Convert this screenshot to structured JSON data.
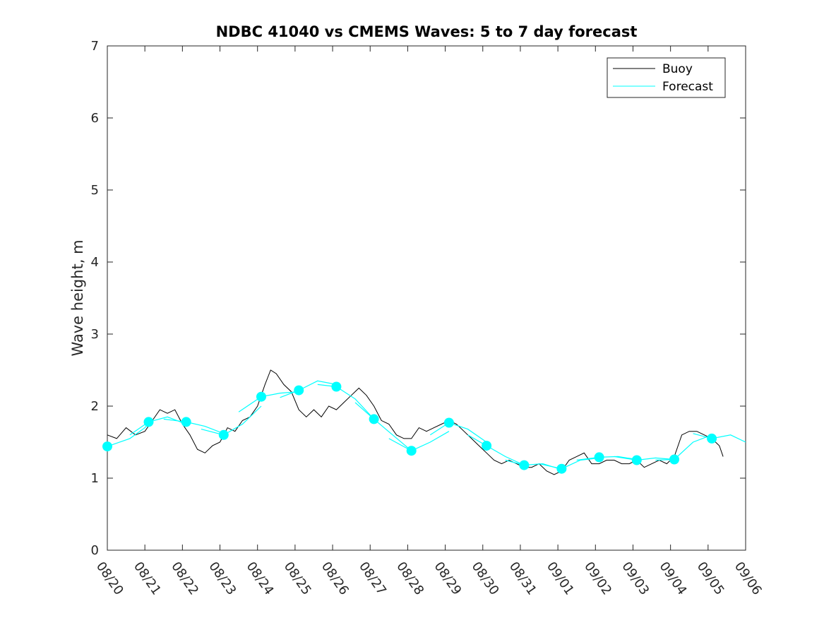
{
  "chart_data": {
    "type": "line",
    "title": "NDBC 41040 vs CMEMS Waves: 5 to 7 day forecast",
    "xlabel": "",
    "ylabel": "Wave height, m",
    "x_ticks": [
      "08/20",
      "08/21",
      "08/22",
      "08/23",
      "08/24",
      "08/25",
      "08/26",
      "08/27",
      "08/28",
      "08/29",
      "08/30",
      "08/31",
      "09/01",
      "09/02",
      "09/03",
      "09/04",
      "09/05",
      "09/06"
    ],
    "x_range": [
      "2021-08-20T00:00",
      "2021-09-06T00:00"
    ],
    "ylim": [
      0,
      7
    ],
    "y_ticks": [
      0,
      1,
      2,
      3,
      4,
      5,
      6,
      7
    ],
    "grid": false,
    "legend_position": "top-right",
    "colors": {
      "buoy": "#000000",
      "forecast": "#00ffff"
    },
    "series": [
      {
        "name": "Buoy",
        "points": [
          [
            0.0,
            1.6
          ],
          [
            0.25,
            1.55
          ],
          [
            0.5,
            1.7
          ],
          [
            0.75,
            1.6
          ],
          [
            1.0,
            1.65
          ],
          [
            1.2,
            1.8
          ],
          [
            1.4,
            1.95
          ],
          [
            1.6,
            1.9
          ],
          [
            1.8,
            1.95
          ],
          [
            2.0,
            1.75
          ],
          [
            2.2,
            1.6
          ],
          [
            2.4,
            1.4
          ],
          [
            2.6,
            1.35
          ],
          [
            2.8,
            1.45
          ],
          [
            3.0,
            1.5
          ],
          [
            3.2,
            1.7
          ],
          [
            3.4,
            1.65
          ],
          [
            3.6,
            1.8
          ],
          [
            3.8,
            1.85
          ],
          [
            4.0,
            2.0
          ],
          [
            4.2,
            2.3
          ],
          [
            4.35,
            2.5
          ],
          [
            4.5,
            2.45
          ],
          [
            4.7,
            2.3
          ],
          [
            4.9,
            2.2
          ],
          [
            5.1,
            1.95
          ],
          [
            5.3,
            1.85
          ],
          [
            5.5,
            1.95
          ],
          [
            5.7,
            1.85
          ],
          [
            5.9,
            2.0
          ],
          [
            6.1,
            1.95
          ],
          [
            6.3,
            2.05
          ],
          [
            6.5,
            2.15
          ],
          [
            6.7,
            2.25
          ],
          [
            6.9,
            2.15
          ],
          [
            7.1,
            2.0
          ],
          [
            7.3,
            1.8
          ],
          [
            7.5,
            1.75
          ],
          [
            7.7,
            1.6
          ],
          [
            7.9,
            1.55
          ],
          [
            8.1,
            1.55
          ],
          [
            8.3,
            1.7
          ],
          [
            8.5,
            1.65
          ],
          [
            8.7,
            1.7
          ],
          [
            8.9,
            1.75
          ],
          [
            9.1,
            1.8
          ],
          [
            9.3,
            1.75
          ],
          [
            9.5,
            1.65
          ],
          [
            9.7,
            1.55
          ],
          [
            9.9,
            1.45
          ],
          [
            10.1,
            1.35
          ],
          [
            10.3,
            1.25
          ],
          [
            10.5,
            1.2
          ],
          [
            10.7,
            1.25
          ],
          [
            10.9,
            1.2
          ],
          [
            11.1,
            1.15
          ],
          [
            11.3,
            1.15
          ],
          [
            11.5,
            1.2
          ],
          [
            11.7,
            1.1
          ],
          [
            11.9,
            1.05
          ],
          [
            12.1,
            1.1
          ],
          [
            12.3,
            1.25
          ],
          [
            12.5,
            1.3
          ],
          [
            12.7,
            1.35
          ],
          [
            12.9,
            1.2
          ],
          [
            13.1,
            1.2
          ],
          [
            13.3,
            1.25
          ],
          [
            13.5,
            1.25
          ],
          [
            13.7,
            1.2
          ],
          [
            13.9,
            1.2
          ],
          [
            14.1,
            1.25
          ],
          [
            14.3,
            1.15
          ],
          [
            14.5,
            1.2
          ],
          [
            14.7,
            1.25
          ],
          [
            14.9,
            1.2
          ],
          [
            15.1,
            1.3
          ],
          [
            15.3,
            1.6
          ],
          [
            15.5,
            1.65
          ],
          [
            15.7,
            1.65
          ],
          [
            15.9,
            1.6
          ],
          [
            16.1,
            1.55
          ],
          [
            16.3,
            1.45
          ],
          [
            16.4,
            1.3
          ]
        ]
      },
      {
        "name": "Forecast",
        "runs": [
          {
            "marker": [
              0.0,
              1.44
            ],
            "points": [
              [
                0.0,
                1.44
              ],
              [
                0.6,
                1.55
              ],
              [
                1.0,
                1.7
              ],
              [
                1.1,
                1.76
              ]
            ]
          },
          {
            "marker": [
              1.1,
              1.78
            ],
            "points": [
              [
                0.6,
                1.6
              ],
              [
                1.1,
                1.78
              ],
              [
                1.6,
                1.85
              ],
              [
                2.1,
                1.75
              ]
            ]
          },
          {
            "marker": [
              2.1,
              1.78
            ],
            "points": [
              [
                1.5,
                1.82
              ],
              [
                2.1,
                1.78
              ],
              [
                2.6,
                1.72
              ],
              [
                3.1,
                1.62
              ]
            ]
          },
          {
            "marker": [
              3.1,
              1.6
            ],
            "points": [
              [
                2.5,
                1.68
              ],
              [
                3.1,
                1.6
              ],
              [
                3.6,
                1.75
              ],
              [
                4.1,
                2.0
              ]
            ]
          },
          {
            "marker": [
              4.1,
              2.13
            ],
            "points": [
              [
                3.5,
                1.92
              ],
              [
                4.1,
                2.13
              ],
              [
                4.6,
                2.18
              ],
              [
                5.1,
                2.2
              ]
            ]
          },
          {
            "marker": [
              5.1,
              2.22
            ],
            "points": [
              [
                4.6,
                2.12
              ],
              [
                5.1,
                2.22
              ],
              [
                5.6,
                2.35
              ],
              [
                6.1,
                2.3
              ]
            ]
          },
          {
            "marker": [
              6.1,
              2.27
            ],
            "points": [
              [
                5.6,
                2.3
              ],
              [
                6.1,
                2.27
              ],
              [
                6.6,
                2.1
              ],
              [
                7.1,
                1.82
              ]
            ]
          },
          {
            "marker": [
              7.1,
              1.82
            ],
            "points": [
              [
                6.6,
                2.05
              ],
              [
                7.1,
                1.82
              ],
              [
                7.6,
                1.6
              ],
              [
                8.1,
                1.38
              ]
            ]
          },
          {
            "marker": [
              8.1,
              1.38
            ],
            "points": [
              [
                7.5,
                1.55
              ],
              [
                8.1,
                1.38
              ],
              [
                8.6,
                1.5
              ],
              [
                9.1,
                1.65
              ]
            ]
          },
          {
            "marker": [
              9.1,
              1.77
            ],
            "points": [
              [
                8.6,
                1.6
              ],
              [
                9.1,
                1.77
              ],
              [
                9.6,
                1.68
              ],
              [
                10.1,
                1.5
              ]
            ]
          },
          {
            "marker": [
              10.1,
              1.45
            ],
            "points": [
              [
                9.6,
                1.6
              ],
              [
                10.1,
                1.45
              ],
              [
                10.6,
                1.3
              ],
              [
                11.1,
                1.18
              ]
            ]
          },
          {
            "marker": [
              11.1,
              1.18
            ],
            "points": [
              [
                10.6,
                1.25
              ],
              [
                11.1,
                1.18
              ],
              [
                11.6,
                1.2
              ],
              [
                12.1,
                1.12
              ]
            ]
          },
          {
            "marker": [
              12.1,
              1.13
            ],
            "points": [
              [
                11.5,
                1.2
              ],
              [
                12.1,
                1.13
              ],
              [
                12.6,
                1.25
              ],
              [
                13.1,
                1.28
              ]
            ]
          },
          {
            "marker": [
              13.1,
              1.29
            ],
            "points": [
              [
                12.5,
                1.25
              ],
              [
                13.1,
                1.29
              ],
              [
                13.6,
                1.3
              ],
              [
                14.1,
                1.26
              ]
            ]
          },
          {
            "marker": [
              14.1,
              1.25
            ],
            "points": [
              [
                13.5,
                1.3
              ],
              [
                14.1,
                1.25
              ],
              [
                14.6,
                1.28
              ],
              [
                15.1,
                1.26
              ]
            ]
          },
          {
            "marker": [
              15.1,
              1.26
            ],
            "points": [
              [
                14.6,
                1.25
              ],
              [
                15.1,
                1.26
              ],
              [
                15.6,
                1.5
              ],
              [
                16.1,
                1.6
              ]
            ]
          },
          {
            "marker": [
              16.1,
              1.55
            ],
            "points": [
              [
                15.6,
                1.62
              ],
              [
                16.1,
                1.55
              ],
              [
                16.6,
                1.6
              ],
              [
                17.0,
                1.5
              ]
            ]
          }
        ]
      }
    ]
  }
}
